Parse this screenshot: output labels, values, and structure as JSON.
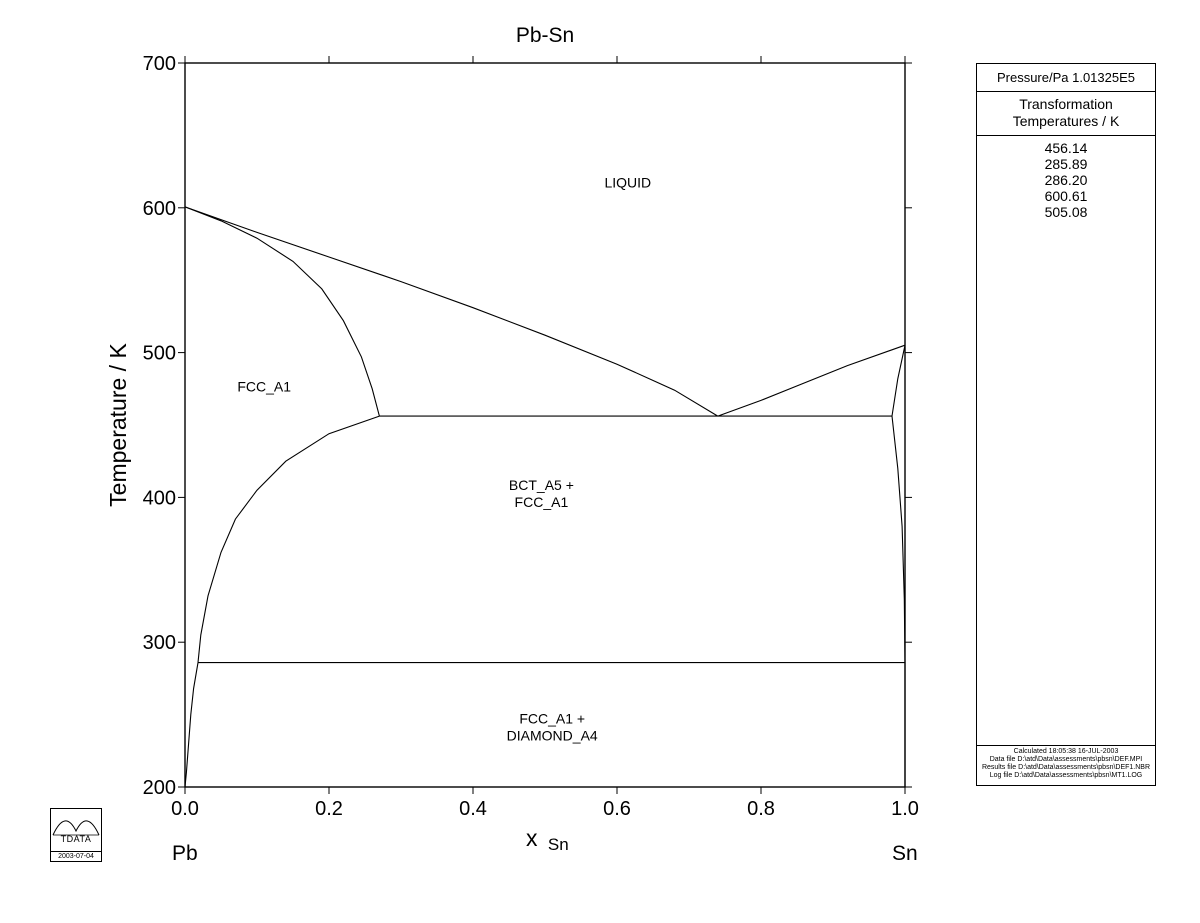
{
  "chart_data": {
    "type": "line",
    "title": "Pb-Sn",
    "xlabel": "x",
    "xlabel_sub": "Sn",
    "ylabel": "Temperature / K",
    "xlim": [
      0.0,
      1.0
    ],
    "ylim": [
      200,
      700
    ],
    "x_ticks": [
      "0.0",
      "0.2",
      "0.4",
      "0.6",
      "0.8",
      "1.0"
    ],
    "y_ticks": [
      "200",
      "300",
      "400",
      "500",
      "600",
      "700"
    ],
    "x_end_labels": {
      "left": "Pb",
      "right": "Sn"
    },
    "grid": false,
    "curves": [
      {
        "points": [
          [
            0.0,
            600.61
          ],
          [
            0.05,
            591
          ],
          [
            0.1,
            579
          ],
          [
            0.15,
            563
          ],
          [
            0.19,
            544
          ],
          [
            0.22,
            522
          ],
          [
            0.245,
            497
          ],
          [
            0.26,
            475
          ],
          [
            0.27,
            456.14
          ]
        ]
      },
      {
        "points": [
          [
            0.0,
            600.61
          ],
          [
            0.1,
            583
          ],
          [
            0.2,
            566
          ],
          [
            0.3,
            549
          ],
          [
            0.4,
            531
          ],
          [
            0.5,
            512
          ],
          [
            0.6,
            492
          ],
          [
            0.68,
            474
          ],
          [
            0.74,
            456.14
          ]
        ]
      },
      {
        "points": [
          [
            0.74,
            456.14
          ],
          [
            0.8,
            467
          ],
          [
            0.86,
            479
          ],
          [
            0.92,
            491
          ],
          [
            1.0,
            505.08
          ]
        ]
      },
      {
        "points": [
          [
            0.982,
            456.14
          ],
          [
            0.99,
            482
          ],
          [
            1.0,
            505.08
          ]
        ]
      },
      {
        "points": [
          [
            0.27,
            456.14
          ],
          [
            0.982,
            456.14
          ]
        ]
      },
      {
        "points": [
          [
            0.27,
            456.14
          ],
          [
            0.2,
            444
          ],
          [
            0.14,
            425
          ],
          [
            0.1,
            405
          ],
          [
            0.07,
            385
          ],
          [
            0.05,
            362
          ],
          [
            0.032,
            332
          ],
          [
            0.022,
            305
          ],
          [
            0.018,
            285.89
          ]
        ]
      },
      {
        "points": [
          [
            0.018,
            285.89
          ],
          [
            0.012,
            268
          ],
          [
            0.008,
            250
          ],
          [
            0.005,
            230
          ],
          [
            0.002,
            210
          ],
          [
            0.0,
            200
          ]
        ]
      },
      {
        "points": [
          [
            0.018,
            285.89
          ],
          [
            1.0,
            285.89
          ]
        ]
      },
      {
        "points": [
          [
            0.982,
            456.14
          ],
          [
            0.99,
            420
          ],
          [
            0.996,
            380
          ],
          [
            0.999,
            330
          ],
          [
            1.0,
            286.2
          ],
          [
            1.0,
            200
          ]
        ]
      }
    ],
    "region_labels": [
      {
        "lines": [
          "LIQUID"
        ],
        "x": 0.615,
        "y": 614
      },
      {
        "lines": [
          "FCC_A1"
        ],
        "x": 0.11,
        "y": 473
      },
      {
        "lines": [
          "BCT_A5 +",
          "FCC_A1"
        ],
        "x": 0.495,
        "y": 405
      },
      {
        "lines": [
          "FCC_A1 +",
          "DIAMOND_A4"
        ],
        "x": 0.51,
        "y": 244
      }
    ]
  },
  "info_panel": {
    "pressure_label": "Pressure/Pa  1.01325E5",
    "header_line1": "Transformation",
    "header_line2": "Temperatures / K",
    "values": [
      "456.14",
      "285.89",
      "286.20",
      "600.61",
      "505.08"
    ],
    "footer": [
      "Calculated  18:05:38  16-JUL-2003",
      "Data file  D:\\atd\\Data\\assessments\\pbsn\\DEF.MPI",
      "Results file  D:\\atd\\Data\\assessments\\pbsn\\DEF1.NBR",
      "Log file  D:\\atd\\Data\\assessments\\pbsn\\MT1.LOG"
    ]
  },
  "logo": {
    "text": "TDATA",
    "date": "2003-07-04"
  }
}
